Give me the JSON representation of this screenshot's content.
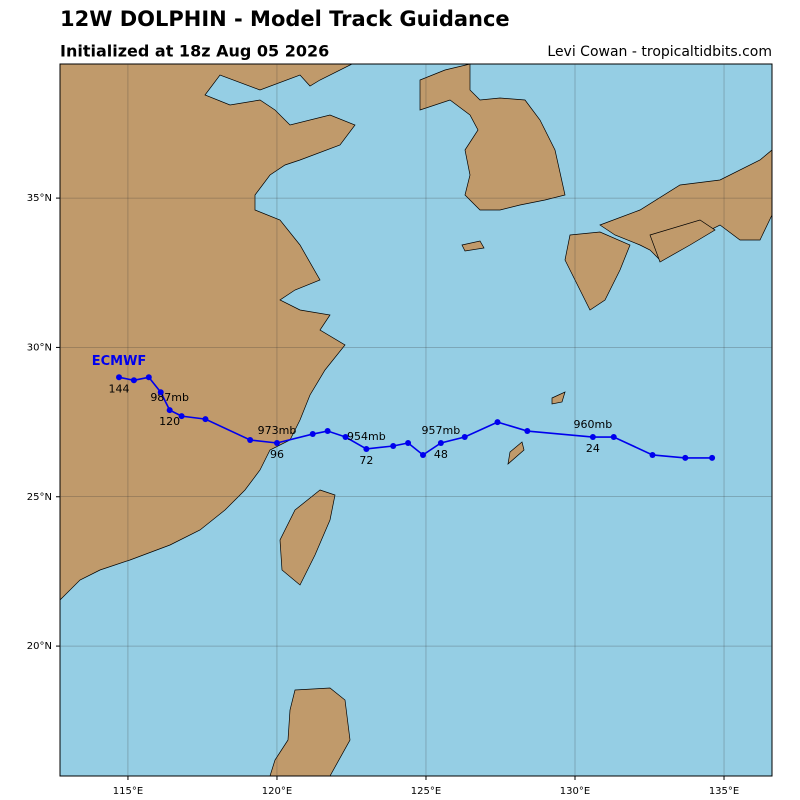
{
  "chart_data": {
    "type": "track",
    "title": "12W DOLPHIN - Model Track Guidance",
    "subtitle": "Initialized at 18z Aug 05 2026",
    "credit": "Levi Cowan - tropicaltidbits.com",
    "xlim": [
      112.72,
      136.61
    ],
    "ylim": [
      15.65,
      39.49
    ],
    "xticks": [
      {
        "value": 115,
        "label": "115°E"
      },
      {
        "value": 120,
        "label": "120°E"
      },
      {
        "value": 125,
        "label": "125°E"
      },
      {
        "value": 130,
        "label": "130°E"
      },
      {
        "value": 135,
        "label": "135°E"
      }
    ],
    "yticks": [
      {
        "value": 20,
        "label": "20°N"
      },
      {
        "value": 25,
        "label": "25°N"
      },
      {
        "value": 30,
        "label": "30°N"
      },
      {
        "value": 35,
        "label": "35°N"
      }
    ],
    "grid": true,
    "series": [
      {
        "name": "ECMWF",
        "color": "#0000ee",
        "x": [
          134.6,
          133.7,
          132.6,
          131.3,
          130.6,
          128.4,
          127.4,
          126.3,
          125.5,
          124.9,
          124.4,
          123.9,
          123.0,
          122.3,
          121.7,
          121.2,
          120.0,
          119.1,
          117.6,
          116.8,
          116.4,
          116.1,
          115.7,
          115.2,
          114.7
        ],
        "values": [
          26.3,
          26.3,
          26.4,
          27.0,
          27.0,
          27.2,
          27.5,
          27.0,
          26.8,
          26.4,
          26.8,
          26.7,
          26.6,
          27.0,
          27.2,
          27.1,
          26.8,
          26.9,
          27.6,
          27.7,
          27.9,
          28.5,
          29.0,
          28.9,
          29.0
        ],
        "hour_labels": [
          null,
          null,
          null,
          null,
          24,
          null,
          null,
          null,
          48,
          null,
          null,
          null,
          72,
          null,
          null,
          null,
          96,
          null,
          null,
          null,
          120,
          null,
          null,
          null,
          144
        ],
        "pressure_labels": [
          null,
          null,
          null,
          null,
          "960mb",
          null,
          null,
          null,
          "957mb",
          null,
          null,
          null,
          "954mb",
          null,
          null,
          null,
          "973mb",
          null,
          null,
          null,
          "987mb",
          null,
          null,
          null,
          null
        ]
      }
    ]
  }
}
